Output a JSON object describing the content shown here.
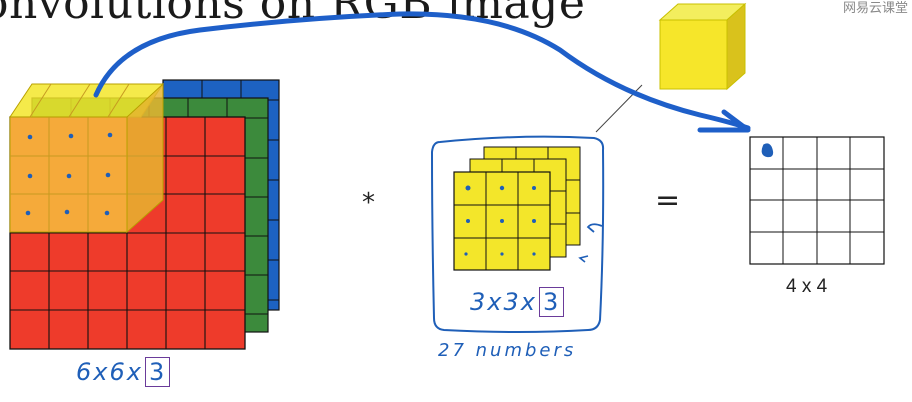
{
  "slide": {
    "title": "onvolutions on RGB image",
    "watermark": "网易云课堂"
  },
  "diagram": {
    "operator_multiply": "*",
    "operator_equals": "=",
    "input_note_prefix": "6x6x",
    "input_note_boxed": "3",
    "filter_note_prefix": "3x3x",
    "filter_note_boxed": "3",
    "param_note": "27 numbers",
    "output_label": "4 x 4",
    "colors": {
      "red": "#ee3b2b",
      "green": "#3c8a3c",
      "blue": "#1d62c2",
      "yellow": "#f3e62a",
      "orange_overlay": "#f5b43c",
      "ink": "#1f5fb8"
    }
  }
}
